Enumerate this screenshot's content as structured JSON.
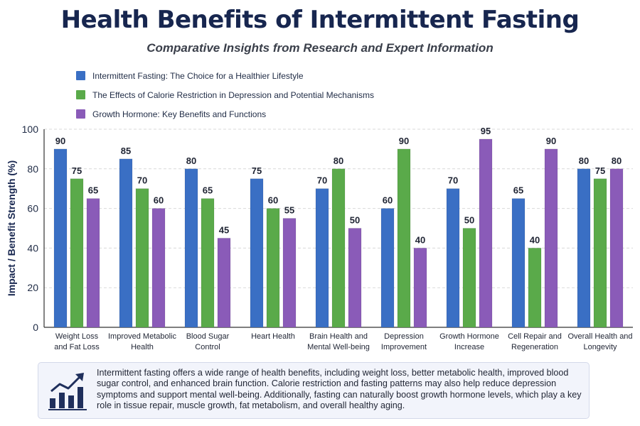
{
  "title": "Health Benefits of Intermittent Fasting",
  "subtitle": "Comparative Insights from Research and Expert Information",
  "colors": {
    "series": [
      "#3a6fc4",
      "#5aaa4a",
      "#8a5bb8"
    ],
    "title": "#17264f",
    "grid": "#d9d9d9"
  },
  "chart_data": {
    "type": "bar",
    "ylabel": "Impact / Benefit Strength (%)",
    "xlabel": "",
    "ylim": [
      0,
      100
    ],
    "yticks": [
      0,
      20,
      40,
      60,
      80,
      100
    ],
    "grid": true,
    "legend_position": "top-left",
    "categories": [
      [
        "Weight Loss",
        "and Fat Loss"
      ],
      [
        "Improved Metabolic",
        "Health"
      ],
      [
        "Blood Sugar",
        "Control"
      ],
      [
        "Heart Health"
      ],
      [
        "Brain Health and",
        "Mental Well-being"
      ],
      [
        "Depression",
        "Improvement"
      ],
      [
        "Growth Hormone",
        "Increase"
      ],
      [
        "Cell Repair and",
        "Regeneration"
      ],
      [
        "Overall Health and",
        "Longevity"
      ]
    ],
    "series": [
      {
        "name": "Intermittent Fasting: The Choice for a Healthier Lifestyle",
        "values": [
          90,
          85,
          80,
          75,
          70,
          60,
          70,
          65,
          80
        ]
      },
      {
        "name": "The Effects of Calorie Restriction in Depression and Potential Mechanisms",
        "values": [
          75,
          70,
          65,
          60,
          80,
          90,
          50,
          40,
          75
        ]
      },
      {
        "name": "Growth Hormone: Key Benefits and Functions",
        "values": [
          65,
          60,
          45,
          55,
          50,
          40,
          95,
          90,
          80
        ]
      }
    ]
  },
  "note": {
    "icon": "bar-chart-growth-icon",
    "text": "Intermittent fasting offers a wide range of health benefits, including weight loss, better metabolic health, improved blood sugar control, and enhanced brain function. Calorie restriction and fasting patterns may also help reduce depression symptoms and support mental well-being. Additionally, fasting can naturally boost growth hormone levels, which play a key role in tissue repair, muscle growth, fat metabolism, and overall healthy aging."
  }
}
